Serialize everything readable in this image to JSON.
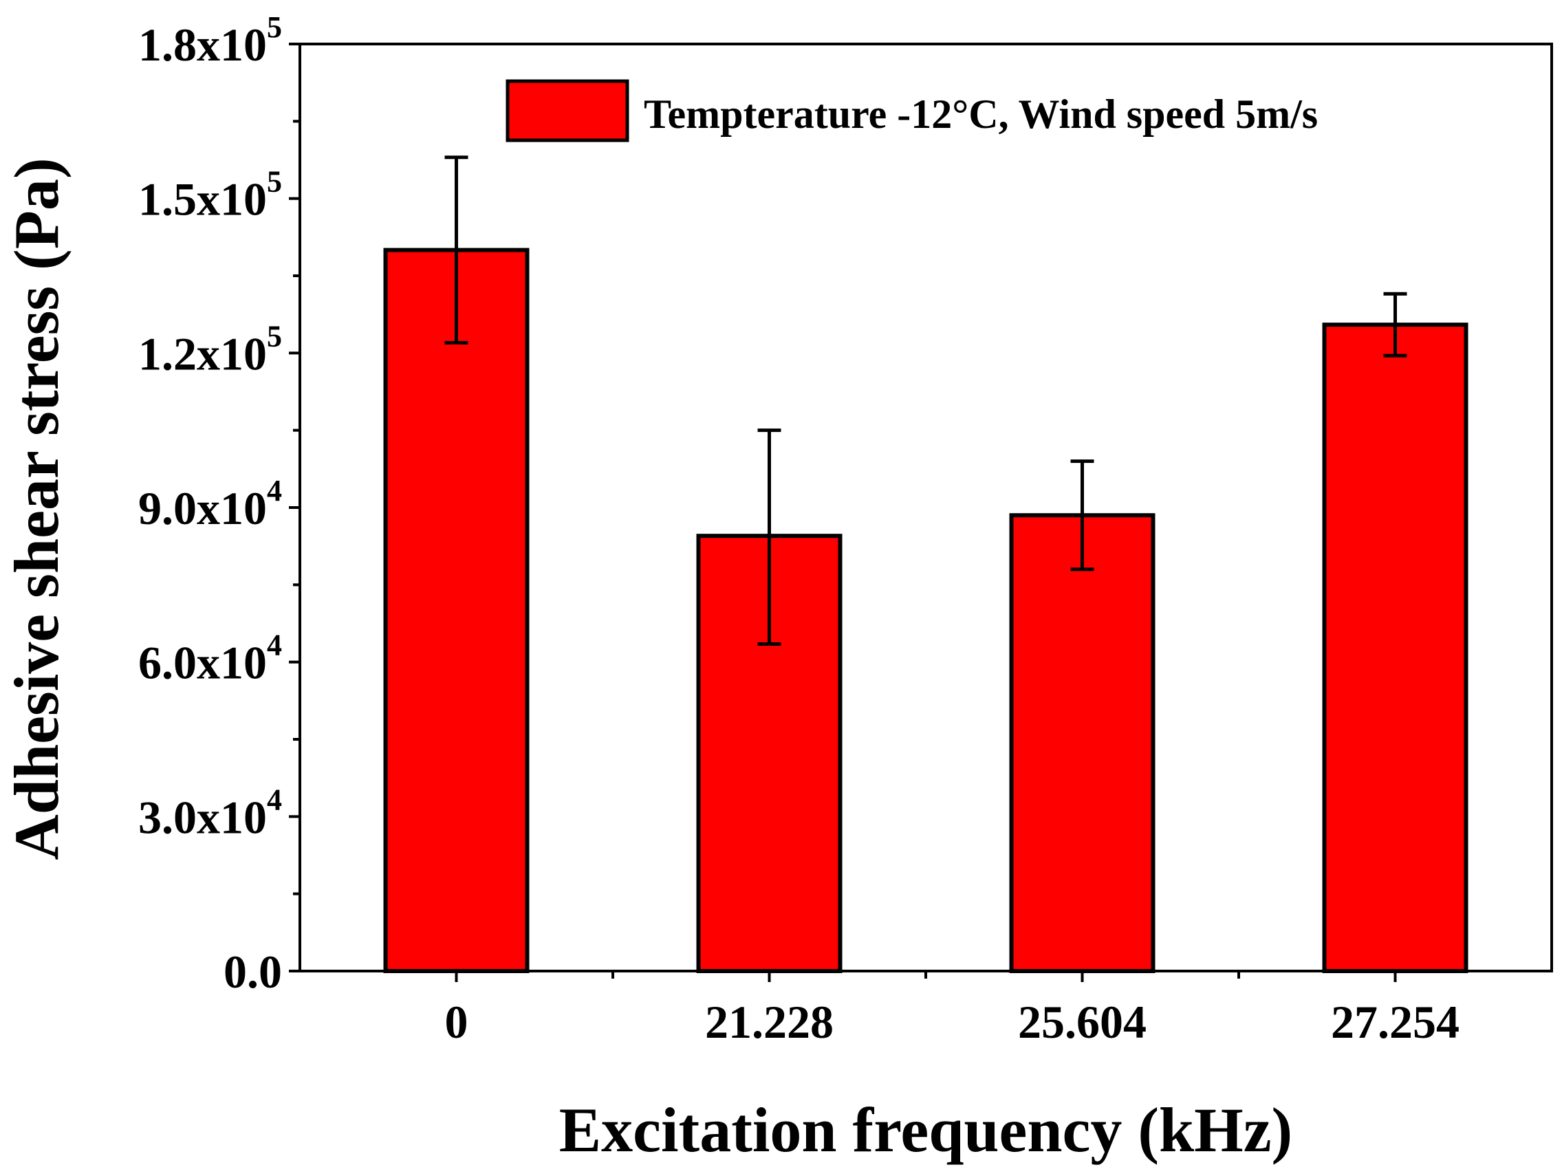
{
  "chart_data": {
    "type": "bar",
    "title": "",
    "xlabel": "Excitation frequency (kHz)",
    "ylabel": "Adhesive shear stress (Pa)",
    "categories": [
      "0",
      "21.228",
      "25.604",
      "27.254"
    ],
    "series": [
      {
        "name": "Tempterature -12°C, Wind speed 5m/s",
        "values": [
          140000,
          84500,
          88500,
          125500
        ],
        "error_low": [
          122000,
          63500,
          78000,
          119500
        ],
        "error_high": [
          158000,
          105000,
          99000,
          131500
        ],
        "color": "#ff0000"
      }
    ],
    "ylim": [
      0,
      180000
    ],
    "y_ticks": [
      {
        "value": 0,
        "mantissa": "0.0",
        "exp": ""
      },
      {
        "value": 30000,
        "mantissa": "3.0x10",
        "exp": "4"
      },
      {
        "value": 60000,
        "mantissa": "6.0x10",
        "exp": "4"
      },
      {
        "value": 90000,
        "mantissa": "9.0x10",
        "exp": "4"
      },
      {
        "value": 120000,
        "mantissa": "1.2x10",
        "exp": "5"
      },
      {
        "value": 150000,
        "mantissa": "1.5x10",
        "exp": "5"
      },
      {
        "value": 180000,
        "mantissa": "1.8x10",
        "exp": "5"
      }
    ],
    "minor_y_step": 15000,
    "legend_position": "top-right",
    "grid": false
  }
}
